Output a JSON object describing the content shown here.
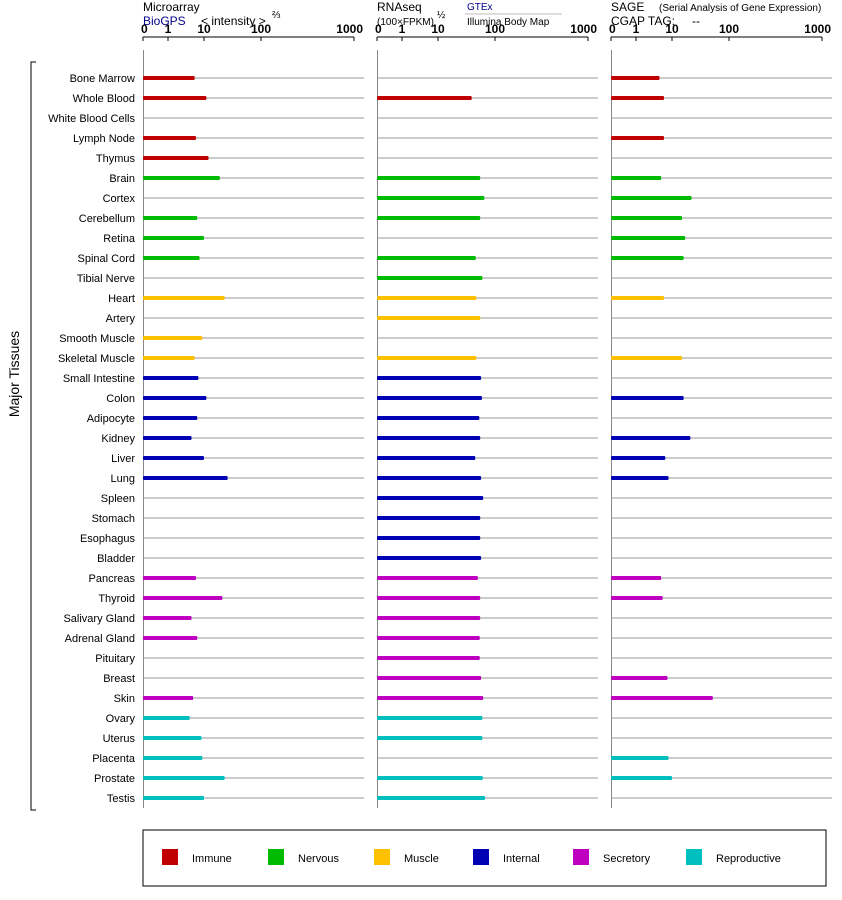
{
  "chart_data": {
    "type": "bar",
    "y_axis_title": "Major Tissues",
    "tissues": [
      "Bone Marrow",
      "Whole Blood",
      "White Blood Cells",
      "Lymph Node",
      "Thymus",
      "Brain",
      "Cortex",
      "Cerebellum",
      "Retina",
      "Spinal Cord",
      "Tibial Nerve",
      "Heart",
      "Artery",
      "Smooth Muscle",
      "Skeletal Muscle",
      "Small Intestine",
      "Colon",
      "Adipocyte",
      "Kidney",
      "Liver",
      "Lung",
      "Spleen",
      "Stomach",
      "Esophagus",
      "Bladder",
      "Pancreas",
      "Thyroid",
      "Salivary Gland",
      "Adrenal Gland",
      "Pituitary",
      "Breast",
      "Skin",
      "Ovary",
      "Uterus",
      "Placenta",
      "Prostate",
      "Testis"
    ],
    "tissue_category": [
      "Immune",
      "Immune",
      "Immune",
      "Immune",
      "Immune",
      "Nervous",
      "Nervous",
      "Nervous",
      "Nervous",
      "Nervous",
      "Nervous",
      "Muscle",
      "Muscle",
      "Muscle",
      "Muscle",
      "Internal",
      "Internal",
      "Internal",
      "Internal",
      "Internal",
      "Internal",
      "Internal",
      "Internal",
      "Internal",
      "Internal",
      "Secretory",
      "Secretory",
      "Secretory",
      "Secretory",
      "Secretory",
      "Secretory",
      "Secretory",
      "Reproductive",
      "Reproductive",
      "Reproductive",
      "Reproductive",
      "Reproductive"
    ],
    "categories": [
      {
        "name": "Immune",
        "color": "#c00000"
      },
      {
        "name": "Nervous",
        "color": "#00bb00"
      },
      {
        "name": "Muscle",
        "color": "#ffc000"
      },
      {
        "name": "Internal",
        "color": "#0000b4"
      },
      {
        "name": "Secretory",
        "color": "#c000c0"
      },
      {
        "name": "Reproductive",
        "color": "#00bfbf"
      }
    ],
    "panels": [
      {
        "id": "microarray",
        "title": "Microarray",
        "source": "BioGPS",
        "scale_label": "< intensity >",
        "scale_exponent": "⅔",
        "ticks": [
          "0",
          "1",
          "10",
          "100",
          "1000"
        ],
        "xlim": [
          0,
          1000
        ],
        "values": [
          5.5,
          11,
          null,
          6,
          12,
          19,
          null,
          6.5,
          10,
          7.5,
          null,
          23,
          null,
          9,
          5.5,
          7,
          11,
          6.5,
          4.5,
          10,
          26,
          null,
          null,
          null,
          null,
          6,
          21,
          4.5,
          6.5,
          null,
          null,
          5,
          4,
          8.5,
          9,
          23,
          10
        ]
      },
      {
        "id": "rnaseq",
        "title": "RNAseq",
        "scale_label": "(100×FPKM)",
        "scale_exponent": "½",
        "source": "GTEx",
        "source2": "Illumina Body Map",
        "ticks": [
          "0",
          "1",
          "10",
          "100",
          "1000"
        ],
        "xlim": [
          0,
          1000
        ],
        "values": [
          null,
          39,
          null,
          null,
          null,
          55,
          65,
          55,
          0,
          46,
          60,
          47,
          55,
          0,
          47,
          57,
          59,
          53,
          55,
          45,
          57,
          62,
          55,
          55,
          57,
          50,
          55,
          55,
          54,
          54,
          57,
          62,
          60,
          60,
          null,
          61,
          67
        ]
      },
      {
        "id": "sage",
        "title": "SAGE",
        "subtitle": "(Serial Analysis of Gene Expression)",
        "tag_label": "CGAP TAG:",
        "tag_value": "--",
        "ticks": [
          "0",
          "1",
          "10",
          "100",
          "1000"
        ],
        "xlim": [
          0,
          1000
        ],
        "values": [
          4.5,
          6,
          null,
          6,
          null,
          5,
          22,
          15,
          17,
          16,
          null,
          6,
          null,
          null,
          15,
          null,
          16,
          null,
          21,
          6.5,
          8,
          null,
          null,
          null,
          null,
          5,
          5.5,
          null,
          null,
          null,
          7.5,
          52,
          null,
          null,
          8,
          10,
          null
        ]
      }
    ]
  }
}
